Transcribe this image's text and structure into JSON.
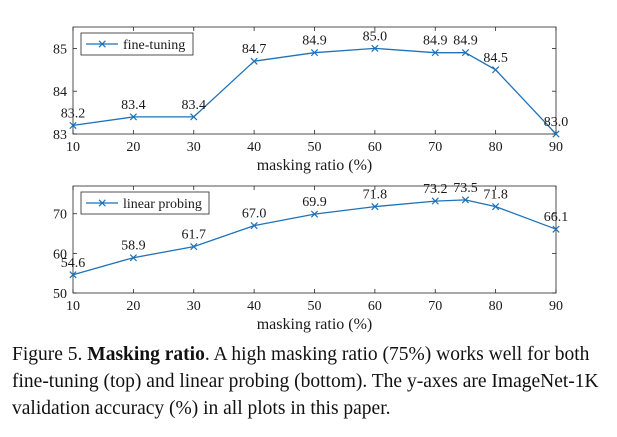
{
  "chart_data": [
    {
      "type": "line",
      "panel": "top",
      "x": [
        10,
        20,
        30,
        40,
        50,
        60,
        70,
        75,
        80,
        90
      ],
      "series": [
        {
          "name": "fine-tuning",
          "values": [
            83.2,
            83.4,
            83.4,
            84.7,
            84.9,
            85.0,
            84.9,
            84.9,
            84.5,
            83.0
          ]
        }
      ],
      "data_labels": [
        "83.2",
        "83.4",
        "83.4",
        "84.7",
        "84.9",
        "85.0",
        "84.9",
        "84.9",
        "84.5",
        "83.0"
      ],
      "xlabel": "masking ratio (%)",
      "ylabel": "",
      "xlim": [
        10,
        90
      ],
      "ylim": [
        83,
        85.5
      ],
      "xticks": [
        10,
        20,
        30,
        40,
        50,
        60,
        70,
        80,
        90
      ],
      "xtick_labels": [
        "10",
        "20",
        "30",
        "40",
        "50",
        "60",
        "70",
        "80",
        "90"
      ],
      "yticks": [
        83,
        84,
        85
      ],
      "ytick_labels": [
        "83",
        "84",
        "85"
      ],
      "legend": "top-left",
      "grid": false,
      "color": "#1f72b8"
    },
    {
      "type": "line",
      "panel": "bottom",
      "x": [
        10,
        20,
        30,
        40,
        50,
        60,
        70,
        75,
        80,
        90
      ],
      "series": [
        {
          "name": "linear probing",
          "values": [
            54.6,
            58.9,
            61.7,
            67.0,
            69.9,
            71.8,
            73.2,
            73.5,
            71.8,
            66.1
          ]
        }
      ],
      "data_labels": [
        "54.6",
        "58.9",
        "61.7",
        "67.0",
        "69.9",
        "71.8",
        "73.2",
        "73.5",
        "71.8",
        "66.1"
      ],
      "xlabel": "masking ratio (%)",
      "ylabel": "",
      "xlim": [
        10,
        90
      ],
      "ylim": [
        50,
        77
      ],
      "xticks": [
        10,
        20,
        30,
        40,
        50,
        60,
        70,
        80,
        90
      ],
      "xtick_labels": [
        "10",
        "20",
        "30",
        "40",
        "50",
        "60",
        "70",
        "80",
        "90"
      ],
      "yticks": [
        50,
        60,
        70
      ],
      "ytick_labels": [
        "50",
        "60",
        "70"
      ],
      "legend": "top-left",
      "grid": false,
      "color": "#1f72b8"
    }
  ],
  "caption": {
    "figure_label": "Figure 5.",
    "bold_title": "Masking ratio",
    "text": ". A high masking ratio (75%) works well for both fine-tuning (top) and linear probing (bottom). The y-axes are ImageNet-1K validation accuracy (%) in all plots in this paper."
  }
}
